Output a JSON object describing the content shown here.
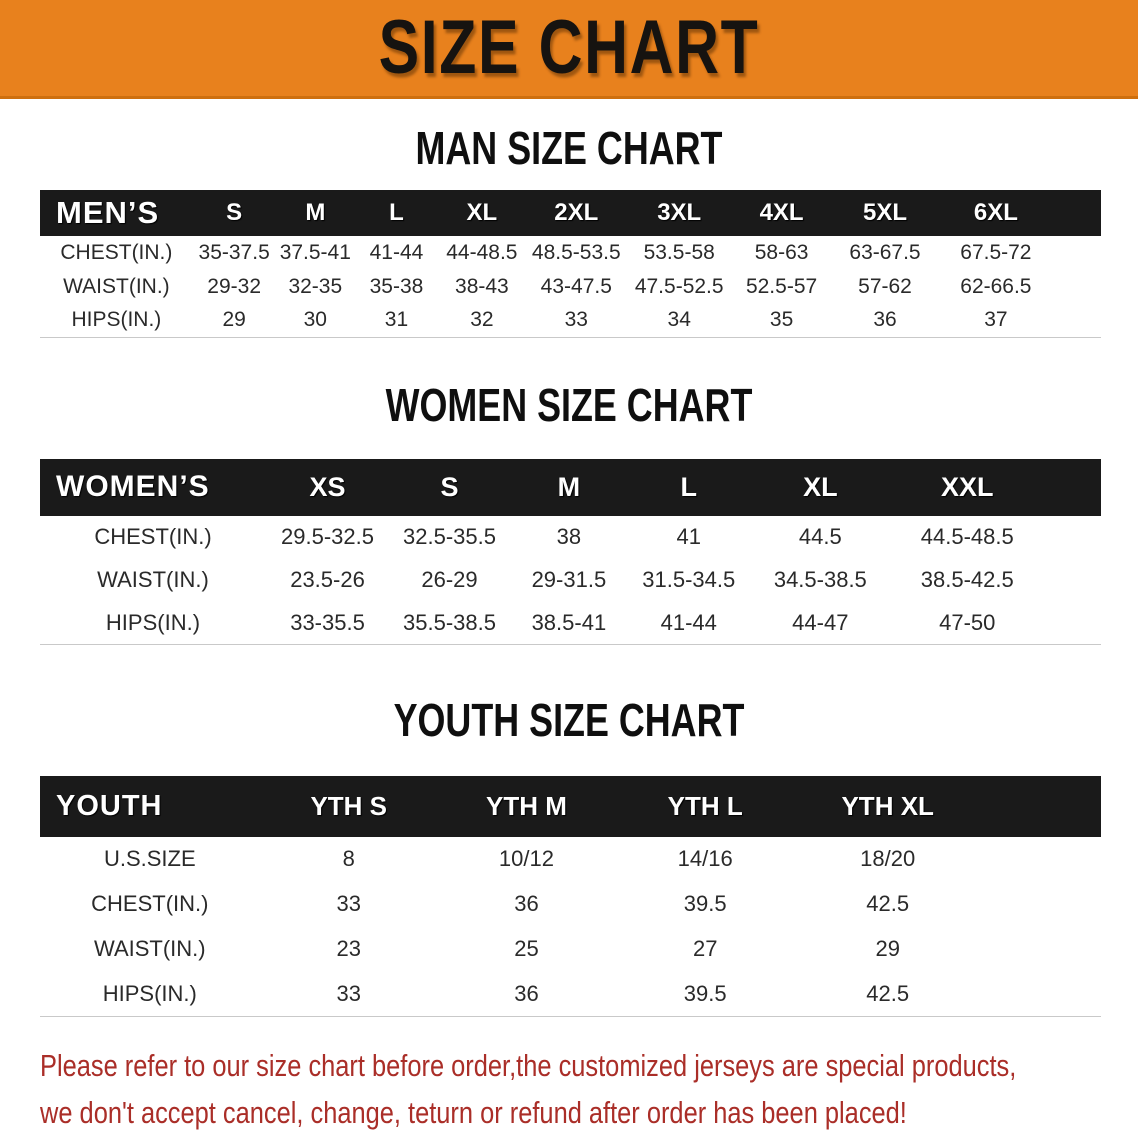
{
  "banner": {
    "title": "SIZE CHART"
  },
  "colors": {
    "banner_bg": "#E8811D",
    "banner_border": "#CE6F0E",
    "table_header_bg": "#1A1A1A",
    "row_stripe": "#E3E3E5",
    "disclaimer_text": "#AA2E28"
  },
  "sections": [
    {
      "title": "MAN SIZE CHART",
      "header_label": "MEN’S",
      "columns": [
        "S",
        "M",
        "L",
        "XL",
        "2XL",
        "3XL",
        "4XL",
        "5XL",
        "6XL"
      ],
      "rows": [
        {
          "label": "CHEST(IN.)",
          "values": [
            "35-37.5",
            "37.5-41",
            "41-44",
            "44-48.5",
            "48.5-53.5",
            "53.5-58",
            "58-63",
            "63-67.5",
            "67.5-72"
          ]
        },
        {
          "label": "WAIST(IN.)",
          "values": [
            "29-32",
            "32-35",
            "35-38",
            "38-43",
            "43-47.5",
            "47.5-52.5",
            "52.5-57",
            "57-62",
            "62-66.5"
          ]
        },
        {
          "label": "HIPS(IN.)",
          "values": [
            "29",
            "30",
            "31",
            "32",
            "33",
            "34",
            "35",
            "36",
            "37"
          ]
        }
      ]
    },
    {
      "title": "WOMEN SIZE CHART",
      "header_label": "WOMEN’S",
      "columns": [
        "XS",
        "S",
        "M",
        "L",
        "XL",
        "XXL"
      ],
      "rows": [
        {
          "label": "CHEST(IN.)",
          "values": [
            "29.5-32.5",
            "32.5-35.5",
            "38",
            "41",
            "44.5",
            "44.5-48.5"
          ]
        },
        {
          "label": "WAIST(IN.)",
          "values": [
            "23.5-26",
            "26-29",
            "29-31.5",
            "31.5-34.5",
            "34.5-38.5",
            "38.5-42.5"
          ]
        },
        {
          "label": "HIPS(IN.)",
          "values": [
            "33-35.5",
            "35.5-38.5",
            "38.5-41",
            "41-44",
            "44-47",
            "47-50"
          ]
        }
      ]
    },
    {
      "title": "YOUTH SIZE CHART",
      "header_label": "YOUTH",
      "columns": [
        "YTH S",
        "YTH M",
        "YTH L",
        "YTH XL"
      ],
      "rows": [
        {
          "label": "U.S.SIZE",
          "values": [
            "8",
            "10/12",
            "14/16",
            "18/20"
          ]
        },
        {
          "label": "CHEST(IN.)",
          "values": [
            "33",
            "36",
            "39.5",
            "42.5"
          ]
        },
        {
          "label": "WAIST(IN.)",
          "values": [
            "23",
            "25",
            "27",
            "29"
          ]
        },
        {
          "label": "HIPS(IN.)",
          "values": [
            "33",
            "36",
            "39.5",
            "42.5"
          ]
        }
      ]
    }
  ],
  "disclaimer": {
    "line1": "Please refer to our size chart before order,the customized jerseys are special products,",
    "line2": "we don't accept cancel, change, teturn or refund after order has been placed!"
  }
}
